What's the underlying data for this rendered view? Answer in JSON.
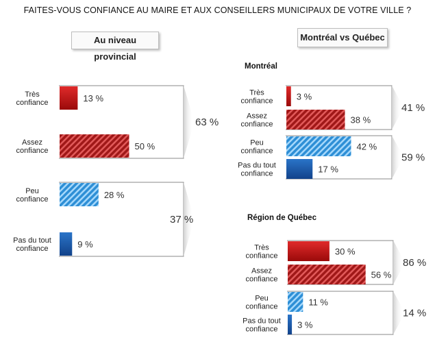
{
  "title": "FAITES-VOUS CONFIANCE AU MAIRE ET AUX CONSEILLERS MUNICIPAUX DE VOTRE VILLE ?",
  "panels": {
    "provincial": "Au niveau provincial",
    "comparison": "Montréal vs Québec"
  },
  "chart_data": [
    {
      "type": "bar",
      "orientation": "horizontal",
      "title": "Au niveau provincial",
      "categories": [
        "Très confiance",
        "Assez confiance",
        "Peu confiance",
        "Pas du tout confiance"
      ],
      "values": [
        13,
        50,
        28,
        9
      ],
      "value_labels": [
        "13 %",
        "50 %",
        "28 %",
        "9 %"
      ],
      "groups": [
        {
          "label": "63 %",
          "value": 63,
          "members": [
            0,
            1
          ]
        },
        {
          "label": "37 %",
          "value": 37,
          "members": [
            2,
            3
          ]
        }
      ]
    },
    {
      "type": "bar",
      "orientation": "horizontal",
      "title": "Montréal",
      "categories": [
        "Très confiance",
        "Assez confiance",
        "Peu confiance",
        "Pas du tout confiance"
      ],
      "values": [
        3,
        38,
        42,
        17
      ],
      "value_labels": [
        "3 %",
        "38 %",
        "42 %",
        "17 %"
      ],
      "groups": [
        {
          "label": "41 %",
          "value": 41,
          "members": [
            0,
            1
          ]
        },
        {
          "label": "59 %",
          "value": 59,
          "members": [
            2,
            3
          ]
        }
      ]
    },
    {
      "type": "bar",
      "orientation": "horizontal",
      "title": "Région de Québec",
      "categories": [
        "Très confiance",
        "Assez confiance",
        "Peu confiance",
        "Pas du tout confiance"
      ],
      "values": [
        30,
        56,
        11,
        3
      ],
      "value_labels": [
        "30 %",
        "56 %",
        "11 %",
        "3 %"
      ],
      "groups": [
        {
          "label": "86 %",
          "value": 86,
          "members": [
            0,
            1
          ]
        },
        {
          "label": "14 %",
          "value": 14,
          "members": [
            2,
            3
          ]
        }
      ]
    }
  ],
  "colors": {
    "tres": "#c81414",
    "assez": "#b01e1e",
    "peu": "#4aa8e8",
    "pasdutout": "#1e5fb0"
  },
  "category_lines": {
    "tres": [
      "Très",
      "confiance"
    ],
    "assez": [
      "Assez",
      "confiance"
    ],
    "peu": [
      "Peu",
      "confiance"
    ],
    "pasdutout": [
      "Pas du tout",
      "confiance"
    ]
  }
}
